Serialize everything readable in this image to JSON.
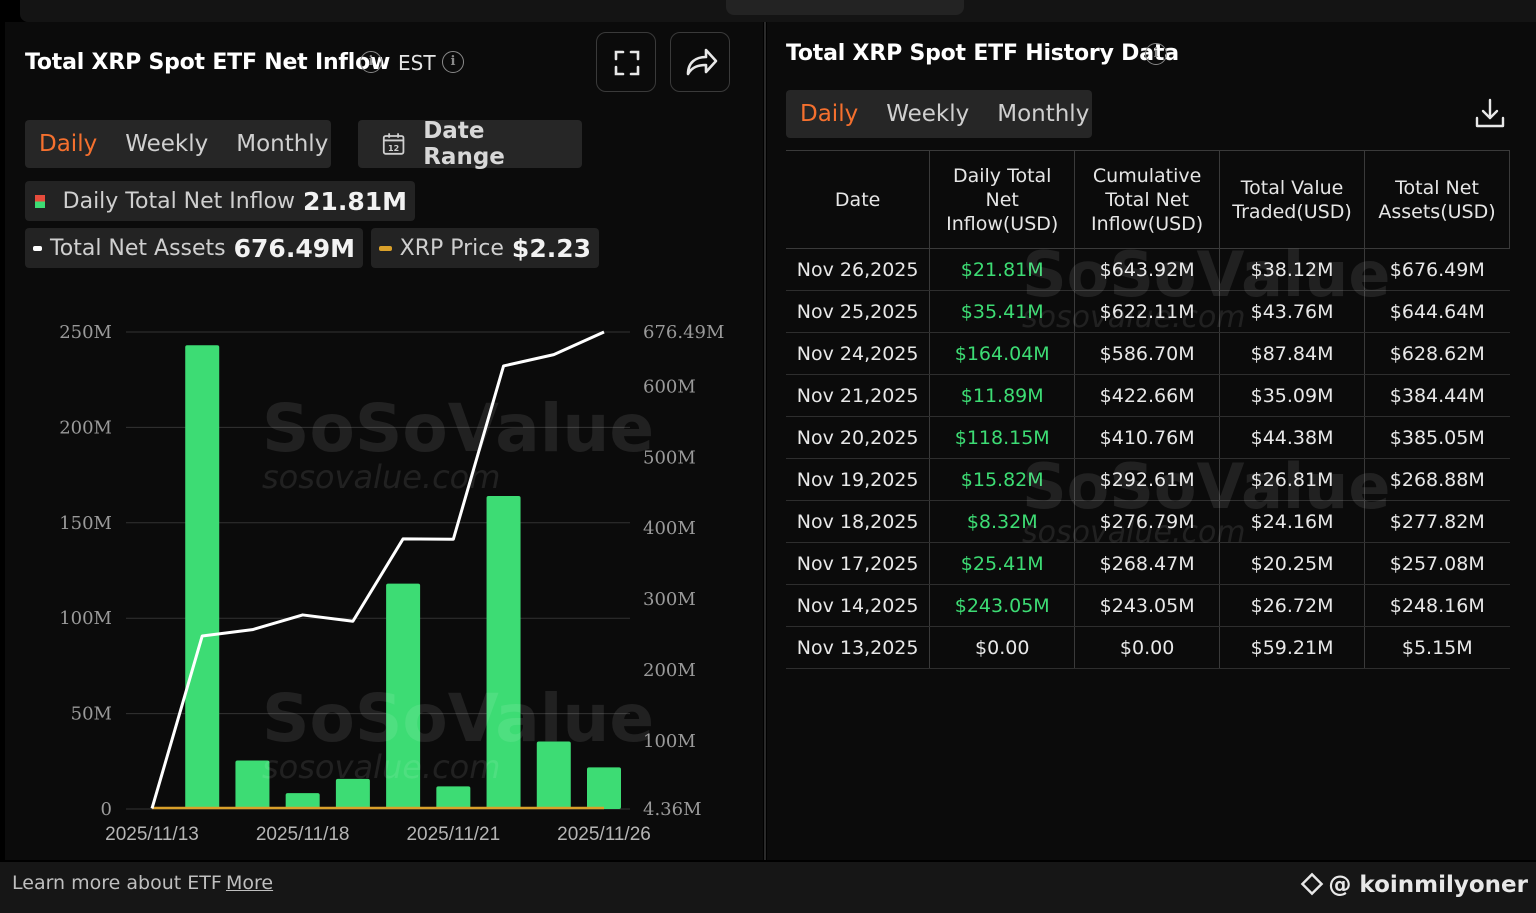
{
  "left": {
    "title": "Total XRP Spot ETF Net Inflow",
    "timezone": "EST",
    "periods": [
      "Daily",
      "Weekly",
      "Monthly"
    ],
    "active_period": "Daily",
    "date_range_label": "Date Range",
    "calendar_day": "12",
    "legend": {
      "inflow_label": "Daily Total Net Inflow",
      "inflow_value": "21.81M",
      "assets_label": "Total Net Assets",
      "assets_value": "676.49M",
      "price_label": "XRP Price",
      "price_value": "$2.23"
    }
  },
  "right": {
    "title": "Total XRP Spot ETF History Data",
    "periods": [
      "Daily",
      "Weekly",
      "Monthly"
    ],
    "active_period": "Daily",
    "columns": [
      "Date",
      "Daily Total Net Inflow(USD)",
      "Cumulative Total Net Inflow(USD)",
      "Total Value Traded(USD)",
      "Total Net Assets(USD)"
    ],
    "rows": [
      [
        "Nov 26,2025",
        "$21.81M",
        "$643.92M",
        "$38.12M",
        "$676.49M"
      ],
      [
        "Nov 25,2025",
        "$35.41M",
        "$622.11M",
        "$43.76M",
        "$644.64M"
      ],
      [
        "Nov 24,2025",
        "$164.04M",
        "$586.70M",
        "$87.84M",
        "$628.62M"
      ],
      [
        "Nov 21,2025",
        "$11.89M",
        "$422.66M",
        "$35.09M",
        "$384.44M"
      ],
      [
        "Nov 20,2025",
        "$118.15M",
        "$410.76M",
        "$44.38M",
        "$385.05M"
      ],
      [
        "Nov 19,2025",
        "$15.82M",
        "$292.61M",
        "$26.81M",
        "$268.88M"
      ],
      [
        "Nov 18,2025",
        "$8.32M",
        "$276.79M",
        "$24.16M",
        "$277.82M"
      ],
      [
        "Nov 17,2025",
        "$25.41M",
        "$268.47M",
        "$20.25M",
        "$257.08M"
      ],
      [
        "Nov 14,2025",
        "$243.05M",
        "$243.05M",
        "$26.72M",
        "$248.16M"
      ],
      [
        "Nov 13,2025",
        "$0.00",
        "$0.00",
        "$59.21M",
        "$5.15M"
      ]
    ]
  },
  "watermark": {
    "brand": "SoSoValue",
    "site": "sosovalue.com"
  },
  "footer": {
    "learn": "Learn more about ETF",
    "more": "More",
    "handle": "@ koinmilyoner"
  },
  "colors": {
    "accent": "#f5702e",
    "bar": "#3ddc74",
    "line": "#ffffff",
    "price": "#d9a02a"
  },
  "chart_data": {
    "type": "bar",
    "x": [
      "2025/11/13",
      "2025/11/14",
      "2025/11/17",
      "2025/11/18",
      "2025/11/19",
      "2025/11/20",
      "2025/11/21",
      "2025/11/24",
      "2025/11/25",
      "2025/11/26"
    ],
    "x_tick_labels": [
      "2025/11/13",
      "2025/11/18",
      "2025/11/21",
      "2025/11/26"
    ],
    "series": [
      {
        "name": "Daily Total Net Inflow",
        "type": "bar",
        "axis": "left",
        "values": [
          0,
          243.05,
          25.41,
          8.32,
          15.82,
          118.15,
          11.89,
          164.04,
          35.41,
          21.81
        ]
      },
      {
        "name": "Total Net Assets",
        "type": "line",
        "axis": "right",
        "values": [
          5.15,
          248.16,
          257.08,
          277.82,
          268.88,
          385.05,
          384.44,
          628.62,
          644.64,
          676.49
        ]
      },
      {
        "name": "XRP Price",
        "type": "line",
        "axis": "price",
        "values": [
          2.23,
          2.23,
          2.23,
          2.23,
          2.23,
          2.23,
          2.23,
          2.23,
          2.23,
          2.23
        ]
      }
    ],
    "y_left": {
      "ticks": [
        "250M",
        "200M",
        "150M",
        "100M",
        "50M",
        "0"
      ],
      "tick_values": [
        250,
        200,
        150,
        100,
        50,
        0
      ],
      "range": [
        0,
        250
      ]
    },
    "y_right": {
      "ticks": [
        "676.49M",
        "600M",
        "500M",
        "400M",
        "300M",
        "200M",
        "100M",
        "4.36M"
      ],
      "tick_values": [
        676.49,
        600,
        500,
        400,
        300,
        200,
        100,
        4.36
      ],
      "range": [
        4.36,
        676.49
      ]
    },
    "grid": true,
    "legend": "top"
  }
}
